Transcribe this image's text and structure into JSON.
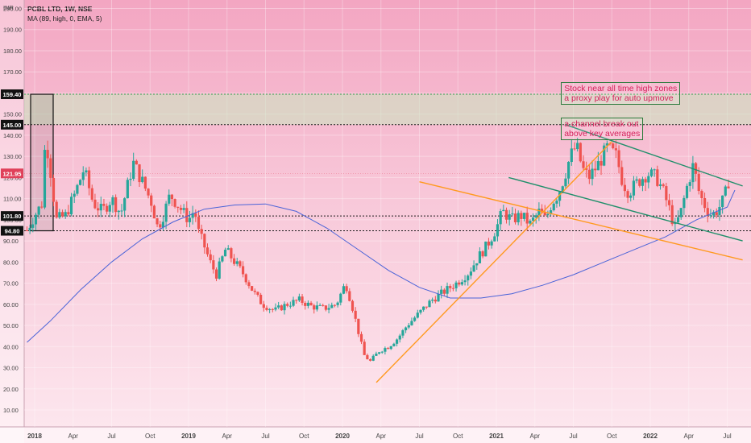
{
  "header": {
    "title": "PCBL LTD, 1W, NSE",
    "indicator": "MA (89, high, 0, EMA, 5)"
  },
  "chart_data": {
    "type": "candlestick",
    "ylabel": "INR",
    "ylim": [
      2,
      204
    ],
    "y_ticks": [
      "10.00",
      "20.00",
      "30.00",
      "40.00",
      "50.00",
      "60.00",
      "70.00",
      "80.00",
      "90.00",
      "100.00",
      "110.00",
      "120.00",
      "130.00",
      "140.00",
      "150.00",
      "160.00",
      "170.00",
      "180.00",
      "190.00",
      "200.00"
    ],
    "x_tick_labels": [
      {
        "label": "2018",
        "t": 0,
        "bold": true
      },
      {
        "label": "Apr",
        "t": 0.25
      },
      {
        "label": "Jul",
        "t": 0.5
      },
      {
        "label": "Oct",
        "t": 0.75
      },
      {
        "label": "2019",
        "t": 1,
        "bold": true
      },
      {
        "label": "Apr",
        "t": 1.25
      },
      {
        "label": "Jul",
        "t": 1.5
      },
      {
        "label": "Oct",
        "t": 1.75
      },
      {
        "label": "2020",
        "t": 2,
        "bold": true
      },
      {
        "label": "Apr",
        "t": 2.25
      },
      {
        "label": "Jul",
        "t": 2.5
      },
      {
        "label": "Oct",
        "t": 2.75
      },
      {
        "label": "2021",
        "t": 3,
        "bold": true
      },
      {
        "label": "Apr",
        "t": 3.25
      },
      {
        "label": "Jul",
        "t": 3.5
      },
      {
        "label": "Oct",
        "t": 3.75
      },
      {
        "label": "2022",
        "t": 4,
        "bold": true
      },
      {
        "label": "Apr",
        "t": 4.25
      },
      {
        "label": "Jul",
        "t": 4.5
      }
    ],
    "price_path": [
      [
        -0.05,
        95
      ],
      [
        0.0,
        102
      ],
      [
        0.05,
        108
      ],
      [
        0.07,
        140
      ],
      [
        0.1,
        125
      ],
      [
        0.14,
        100
      ],
      [
        0.2,
        102
      ],
      [
        0.26,
        112
      ],
      [
        0.32,
        124
      ],
      [
        0.38,
        108
      ],
      [
        0.44,
        104
      ],
      [
        0.5,
        110
      ],
      [
        0.56,
        103
      ],
      [
        0.6,
        115
      ],
      [
        0.64,
        127
      ],
      [
        0.7,
        118
      ],
      [
        0.76,
        108
      ],
      [
        0.8,
        96
      ],
      [
        0.84,
        103
      ],
      [
        0.88,
        112
      ],
      [
        0.94,
        106
      ],
      [
        1.0,
        100
      ],
      [
        1.04,
        105
      ],
      [
        1.06,
        95
      ],
      [
        1.1,
        88
      ],
      [
        1.14,
        80
      ],
      [
        1.18,
        74
      ],
      [
        1.24,
        86
      ],
      [
        1.3,
        80
      ],
      [
        1.36,
        74
      ],
      [
        1.42,
        66
      ],
      [
        1.48,
        60
      ],
      [
        1.56,
        57
      ],
      [
        1.64,
        60
      ],
      [
        1.72,
        62
      ],
      [
        1.8,
        59
      ],
      [
        1.88,
        58
      ],
      [
        1.96,
        60
      ],
      [
        2.02,
        70
      ],
      [
        2.06,
        60
      ],
      [
        2.1,
        48
      ],
      [
        2.14,
        36
      ],
      [
        2.18,
        33
      ],
      [
        2.24,
        38
      ],
      [
        2.3,
        40
      ],
      [
        2.36,
        44
      ],
      [
        2.42,
        50
      ],
      [
        2.5,
        56
      ],
      [
        2.58,
        62
      ],
      [
        2.66,
        66
      ],
      [
        2.74,
        70
      ],
      [
        2.82,
        75
      ],
      [
        2.88,
        82
      ],
      [
        2.94,
        88
      ],
      [
        3.0,
        96
      ],
      [
        3.04,
        104
      ],
      [
        3.1,
        100
      ],
      [
        3.16,
        102
      ],
      [
        3.22,
        98
      ],
      [
        3.28,
        104
      ],
      [
        3.32,
        100
      ],
      [
        3.36,
        108
      ],
      [
        3.4,
        112
      ],
      [
        3.44,
        120
      ],
      [
        3.48,
        130
      ],
      [
        3.52,
        135
      ],
      [
        3.56,
        124
      ],
      [
        3.6,
        120
      ],
      [
        3.66,
        126
      ],
      [
        3.72,
        134
      ],
      [
        3.78,
        130
      ],
      [
        3.82,
        118
      ],
      [
        3.86,
        113
      ],
      [
        3.92,
        118
      ],
      [
        3.98,
        122
      ],
      [
        4.04,
        120
      ],
      [
        4.08,
        114
      ],
      [
        4.12,
        106
      ],
      [
        4.16,
        96
      ],
      [
        4.2,
        104
      ],
      [
        4.24,
        116
      ],
      [
        4.28,
        126
      ],
      [
        4.32,
        112
      ],
      [
        4.36,
        106
      ],
      [
        4.4,
        102
      ],
      [
        4.44,
        105
      ],
      [
        4.48,
        110
      ],
      [
        4.52,
        122
      ]
    ],
    "ema": {
      "name": "MA (89, high, 0, EMA, 5)",
      "color": "#4a63d8",
      "points": [
        [
          -0.05,
          42
        ],
        [
          0.1,
          52
        ],
        [
          0.3,
          67
        ],
        [
          0.5,
          80
        ],
        [
          0.7,
          91
        ],
        [
          0.9,
          99
        ],
        [
          1.1,
          105
        ],
        [
          1.3,
          107
        ],
        [
          1.5,
          107.5
        ],
        [
          1.7,
          104
        ],
        [
          1.9,
          96
        ],
        [
          2.1,
          86
        ],
        [
          2.3,
          76
        ],
        [
          2.5,
          68
        ],
        [
          2.7,
          63
        ],
        [
          2.9,
          63
        ],
        [
          3.1,
          65
        ],
        [
          3.3,
          69
        ],
        [
          3.5,
          74
        ],
        [
          3.7,
          80
        ],
        [
          3.9,
          86
        ],
        [
          4.1,
          92
        ],
        [
          4.3,
          100
        ],
        [
          4.5,
          106
        ],
        [
          4.55,
          114
        ]
      ]
    },
    "horizontal_levels": [
      {
        "value": 159.4,
        "label": "159.40",
        "color": "#2ea04a"
      },
      {
        "value": 145.0,
        "label": "145.00",
        "color": "#1a1a1a"
      },
      {
        "value": 101.8,
        "label": "101.80",
        "color": "#1a1a1a"
      },
      {
        "value": 94.8,
        "label": "94.80",
        "color": "#1a1a1a"
      }
    ],
    "last_price": {
      "value": 121.95,
      "label": "121.95",
      "color": "#e0405a"
    },
    "zone": {
      "from": 145.0,
      "to": 159.4,
      "color": "#c9e7c0"
    },
    "trendlines": [
      {
        "color": "#ff9a1f",
        "x1": 2.22,
        "y1": 23,
        "x2": 3.75,
        "y2": 137
      },
      {
        "color": "#ff9a1f",
        "x1": 2.5,
        "y1": 118,
        "x2": 4.6,
        "y2": 81
      },
      {
        "color": "#1f8f6a",
        "x1": 3.45,
        "y1": 145,
        "x2": 4.6,
        "y2": 116
      },
      {
        "color": "#1f8f6a",
        "x1": 3.08,
        "y1": 120,
        "x2": 4.6,
        "y2": 90
      }
    ],
    "annotations": [
      {
        "lines": [
          "Stock near all time high zones",
          "a proxy play for auto upmove"
        ],
        "x": 3.42,
        "y": 155
      },
      {
        "lines": [
          "a channel break out",
          "above key averages"
        ],
        "x": 3.42,
        "y": 138
      }
    ]
  }
}
